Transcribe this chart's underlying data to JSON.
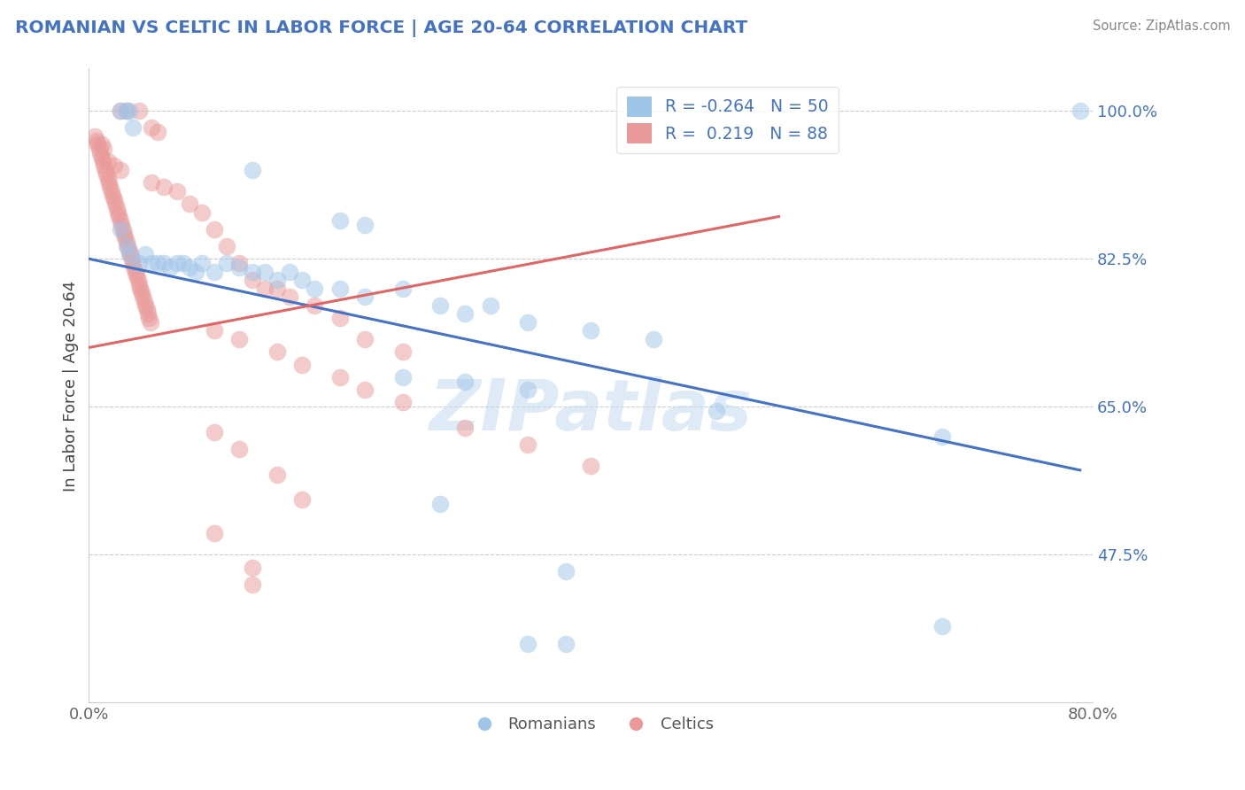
{
  "title": "ROMANIAN VS CELTIC IN LABOR FORCE | AGE 20-64 CORRELATION CHART",
  "source": "Source: ZipAtlas.com",
  "ylabel": "In Labor Force | Age 20-64",
  "right_yticks": [
    "100.0%",
    "82.5%",
    "65.0%",
    "47.5%"
  ],
  "right_ytick_vals": [
    1.0,
    0.825,
    0.65,
    0.475
  ],
  "xlim": [
    0.0,
    0.8
  ],
  "ylim": [
    0.3,
    1.05
  ],
  "r_romanian": -0.264,
  "n_romanian": 50,
  "r_celtic": 0.219,
  "n_celtic": 88,
  "color_romanian": "#9fc5e8",
  "color_celtic": "#ea9999",
  "color_line_romanian": "#4472c4",
  "color_line_celtic": "#e06666",
  "watermark_text": "ZIPatlas",
  "legend_labels": [
    "Romanians",
    "Celtics"
  ],
  "rom_line_x0": 0.0,
  "rom_line_x1": 0.79,
  "rom_line_y0": 0.825,
  "rom_line_y1": 0.575,
  "celt_line_x0": 0.0,
  "celt_line_x1": 0.55,
  "celt_line_y0": 0.72,
  "celt_line_y1": 0.875,
  "romanian_points": [
    [
      0.025,
      1.0
    ],
    [
      0.03,
      1.0
    ],
    [
      0.032,
      1.0
    ],
    [
      0.035,
      0.98
    ],
    [
      0.13,
      0.93
    ],
    [
      0.2,
      0.87
    ],
    [
      0.22,
      0.865
    ],
    [
      0.025,
      0.86
    ],
    [
      0.03,
      0.84
    ],
    [
      0.032,
      0.83
    ],
    [
      0.04,
      0.82
    ],
    [
      0.045,
      0.83
    ],
    [
      0.05,
      0.82
    ],
    [
      0.055,
      0.82
    ],
    [
      0.06,
      0.82
    ],
    [
      0.065,
      0.815
    ],
    [
      0.07,
      0.82
    ],
    [
      0.075,
      0.82
    ],
    [
      0.08,
      0.815
    ],
    [
      0.085,
      0.81
    ],
    [
      0.09,
      0.82
    ],
    [
      0.1,
      0.81
    ],
    [
      0.11,
      0.82
    ],
    [
      0.12,
      0.815
    ],
    [
      0.13,
      0.81
    ],
    [
      0.14,
      0.81
    ],
    [
      0.15,
      0.8
    ],
    [
      0.16,
      0.81
    ],
    [
      0.17,
      0.8
    ],
    [
      0.18,
      0.79
    ],
    [
      0.2,
      0.79
    ],
    [
      0.22,
      0.78
    ],
    [
      0.25,
      0.79
    ],
    [
      0.28,
      0.77
    ],
    [
      0.3,
      0.76
    ],
    [
      0.32,
      0.77
    ],
    [
      0.35,
      0.75
    ],
    [
      0.4,
      0.74
    ],
    [
      0.45,
      0.73
    ],
    [
      0.25,
      0.685
    ],
    [
      0.3,
      0.68
    ],
    [
      0.35,
      0.67
    ],
    [
      0.5,
      0.645
    ],
    [
      0.28,
      0.535
    ],
    [
      0.38,
      0.455
    ],
    [
      0.68,
      0.615
    ],
    [
      0.79,
      1.0
    ],
    [
      0.68,
      0.39
    ],
    [
      0.35,
      0.37
    ],
    [
      0.38,
      0.37
    ]
  ],
  "celtic_points": [
    [
      0.025,
      1.0
    ],
    [
      0.03,
      1.0
    ],
    [
      0.04,
      1.0
    ],
    [
      0.05,
      0.98
    ],
    [
      0.055,
      0.975
    ],
    [
      0.005,
      0.97
    ],
    [
      0.006,
      0.965
    ],
    [
      0.007,
      0.96
    ],
    [
      0.008,
      0.955
    ],
    [
      0.009,
      0.95
    ],
    [
      0.01,
      0.945
    ],
    [
      0.011,
      0.94
    ],
    [
      0.012,
      0.935
    ],
    [
      0.013,
      0.93
    ],
    [
      0.014,
      0.925
    ],
    [
      0.015,
      0.92
    ],
    [
      0.016,
      0.915
    ],
    [
      0.017,
      0.91
    ],
    [
      0.018,
      0.905
    ],
    [
      0.019,
      0.9
    ],
    [
      0.02,
      0.895
    ],
    [
      0.021,
      0.89
    ],
    [
      0.022,
      0.885
    ],
    [
      0.023,
      0.88
    ],
    [
      0.024,
      0.875
    ],
    [
      0.025,
      0.87
    ],
    [
      0.026,
      0.865
    ],
    [
      0.027,
      0.86
    ],
    [
      0.028,
      0.855
    ],
    [
      0.029,
      0.85
    ],
    [
      0.03,
      0.845
    ],
    [
      0.031,
      0.84
    ],
    [
      0.032,
      0.835
    ],
    [
      0.033,
      0.83
    ],
    [
      0.034,
      0.825
    ],
    [
      0.035,
      0.82
    ],
    [
      0.036,
      0.815
    ],
    [
      0.037,
      0.81
    ],
    [
      0.038,
      0.805
    ],
    [
      0.039,
      0.8
    ],
    [
      0.04,
      0.795
    ],
    [
      0.041,
      0.79
    ],
    [
      0.042,
      0.785
    ],
    [
      0.043,
      0.78
    ],
    [
      0.044,
      0.775
    ],
    [
      0.045,
      0.77
    ],
    [
      0.046,
      0.765
    ],
    [
      0.047,
      0.76
    ],
    [
      0.048,
      0.755
    ],
    [
      0.049,
      0.75
    ],
    [
      0.01,
      0.96
    ],
    [
      0.012,
      0.955
    ],
    [
      0.015,
      0.94
    ],
    [
      0.02,
      0.935
    ],
    [
      0.025,
      0.93
    ],
    [
      0.05,
      0.915
    ],
    [
      0.06,
      0.91
    ],
    [
      0.07,
      0.905
    ],
    [
      0.08,
      0.89
    ],
    [
      0.09,
      0.88
    ],
    [
      0.1,
      0.86
    ],
    [
      0.11,
      0.84
    ],
    [
      0.12,
      0.82
    ],
    [
      0.13,
      0.8
    ],
    [
      0.14,
      0.79
    ],
    [
      0.15,
      0.79
    ],
    [
      0.16,
      0.78
    ],
    [
      0.18,
      0.77
    ],
    [
      0.2,
      0.755
    ],
    [
      0.22,
      0.73
    ],
    [
      0.25,
      0.715
    ],
    [
      0.1,
      0.74
    ],
    [
      0.12,
      0.73
    ],
    [
      0.15,
      0.715
    ],
    [
      0.17,
      0.7
    ],
    [
      0.2,
      0.685
    ],
    [
      0.22,
      0.67
    ],
    [
      0.25,
      0.655
    ],
    [
      0.3,
      0.625
    ],
    [
      0.35,
      0.605
    ],
    [
      0.4,
      0.58
    ],
    [
      0.1,
      0.62
    ],
    [
      0.12,
      0.6
    ],
    [
      0.15,
      0.57
    ],
    [
      0.17,
      0.54
    ],
    [
      0.1,
      0.5
    ],
    [
      0.13,
      0.46
    ],
    [
      0.13,
      0.44
    ]
  ]
}
